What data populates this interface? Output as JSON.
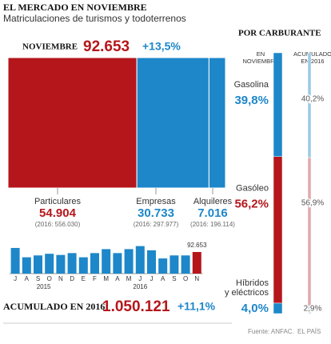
{
  "header": {
    "title": "EL MERCADO EN NOVIEMBRE",
    "subtitle": "Matriculaciones de turismos y todoterrenos"
  },
  "november": {
    "label": "NOVIEMBRE",
    "value": 92653,
    "value_label": "92.653",
    "change": "+13,5%"
  },
  "segments": {
    "names": [
      "Particulares",
      "Empresas",
      "Alquileres"
    ],
    "values": [
      54904,
      30733,
      7016
    ],
    "value_labels": [
      "54.904",
      "30.733",
      "7.016"
    ],
    "notes": [
      "(2016: 556.030)",
      "(2016: 297.977)",
      "(2016: 196.114)"
    ],
    "colors": [
      "#b5161b",
      "#1d87c9",
      "#1d87c9"
    ]
  },
  "monthly": {
    "type": "bar",
    "categories": [
      "J",
      "A",
      "S",
      "O",
      "N",
      "D",
      "E",
      "F",
      "M",
      "A",
      "M",
      "J",
      "J",
      "A",
      "S",
      "O",
      "N"
    ],
    "values": [
      110000,
      70000,
      78000,
      85000,
      80000,
      88000,
      70000,
      88000,
      105000,
      88000,
      105000,
      118000,
      100000,
      65000,
      78000,
      78000,
      92653
    ],
    "value_labels": [
      null,
      null,
      null,
      null,
      null,
      null,
      null,
      null,
      null,
      null,
      null,
      null,
      null,
      null,
      null,
      null,
      "92.653"
    ],
    "years": [
      "2015",
      "2016"
    ],
    "color": "#1d87c9",
    "highlight_color": "#b5161b"
  },
  "accumulated": {
    "label": "ACUMULADO EN 2016",
    "value_label": "1.050.121",
    "change": "+11,1%"
  },
  "fuel": {
    "title": "POR CARBURANTE",
    "column_headers": [
      [
        "EN",
        "NOVIEMBRE"
      ],
      [
        "ACUMULADO",
        "EN 2016"
      ]
    ],
    "names": [
      [
        "Gasolina"
      ],
      [
        "Gasóleo"
      ],
      [
        "Híbridos",
        "y eléctricos"
      ]
    ],
    "november": [
      39.8,
      56.2,
      4.0
    ],
    "november_labels": [
      "39,8%",
      "56,2%",
      "4,0%"
    ],
    "accumulated": [
      40.2,
      56.9,
      2.9
    ],
    "accumulated_labels": [
      "40,2%",
      "56,9%",
      "2,9%"
    ],
    "colors": [
      "#1d87c9",
      "#b5161b",
      "#1d87c9"
    ],
    "accumulated_colors": [
      "#9cc9e6",
      "#e0a9ab",
      "#9cc9e6"
    ]
  },
  "footer": {
    "source": "Fuente: ANFAC.",
    "brand": "EL PAÍS"
  }
}
